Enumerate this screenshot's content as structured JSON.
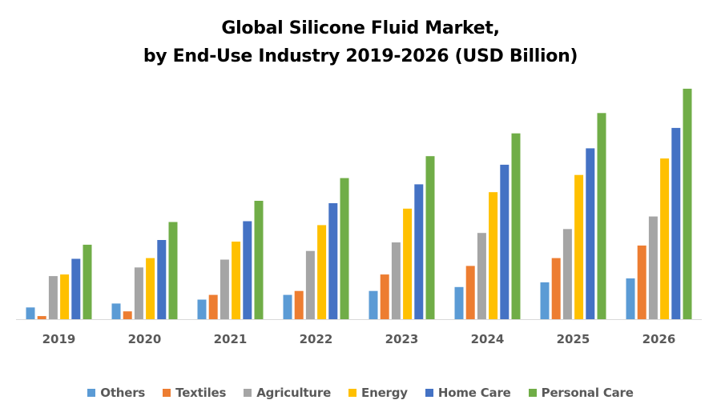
{
  "chart_data": {
    "type": "bar",
    "title": "Global Silicone Fluid Market,",
    "subtitle": "by End-Use Industry 2019-2026 (USD Billion)",
    "xlabel": "",
    "ylabel": "",
    "y_axis_visible": false,
    "grid": false,
    "legend_position": "bottom",
    "values_note": "No value axis or data labels shown; values are estimated relative magnitudes read from bar heights",
    "ylim": [
      0,
      30
    ],
    "categories": [
      "2019",
      "2020",
      "2021",
      "2022",
      "2023",
      "2024",
      "2025",
      "2026"
    ],
    "series": [
      {
        "name": "Others",
        "color": "#5B9BD5",
        "values": [
          1.5,
          2.0,
          2.5,
          3.1,
          3.6,
          4.1,
          4.7,
          5.2
        ]
      },
      {
        "name": "Textiles",
        "color": "#ED7D31",
        "values": [
          0.4,
          1.0,
          3.1,
          3.6,
          5.7,
          6.8,
          7.8,
          9.4
        ]
      },
      {
        "name": "Agriculture",
        "color": "#A5A5A5",
        "values": [
          5.5,
          6.6,
          7.6,
          8.7,
          9.8,
          11.0,
          11.5,
          13.1
        ]
      },
      {
        "name": "Energy",
        "color": "#FFC000",
        "values": [
          5.7,
          7.8,
          9.9,
          12.0,
          14.1,
          16.2,
          18.4,
          20.5
        ]
      },
      {
        "name": "Home Care",
        "color": "#4472C4",
        "values": [
          7.7,
          10.1,
          12.5,
          14.8,
          17.2,
          19.7,
          21.8,
          24.4
        ]
      },
      {
        "name": "Personal Care",
        "color": "#70AD47",
        "values": [
          9.5,
          12.4,
          15.1,
          18.0,
          20.8,
          23.7,
          26.3,
          29.4
        ]
      }
    ]
  }
}
